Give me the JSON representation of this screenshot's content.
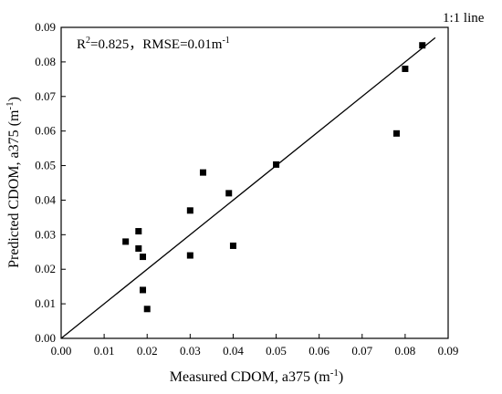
{
  "chart_data": {
    "type": "scatter",
    "xlabel_main": "Measured CDOM, a375 (m",
    "xlabel_sup": "-1",
    "xlabel_end": ")",
    "ylabel_main": "Predicted CDOM, a375 (m",
    "ylabel_sup": "-1",
    "ylabel_end": ")",
    "xlim": [
      0,
      0.09
    ],
    "ylim": [
      0,
      0.09
    ],
    "x_ticks": [
      "0.00",
      "0.01",
      "0.02",
      "0.03",
      "0.04",
      "0.05",
      "0.06",
      "0.07",
      "0.08",
      "0.09"
    ],
    "y_ticks": [
      "0.00",
      "0.01",
      "0.02",
      "0.03",
      "0.04",
      "0.05",
      "0.06",
      "0.07",
      "0.08",
      "0.09"
    ],
    "annotation": {
      "r_prefix": "R",
      "r_sup": "2",
      "r_value": "=0.825，RMSE=0.01m",
      "rmse_sup": "-1"
    },
    "line_label": "1:1 line",
    "reference_line": {
      "x": [
        0,
        0.087
      ],
      "y": [
        0,
        0.087
      ]
    },
    "points": [
      {
        "x": 0.015,
        "y": 0.028
      },
      {
        "x": 0.018,
        "y": 0.031
      },
      {
        "x": 0.018,
        "y": 0.026
      },
      {
        "x": 0.019,
        "y": 0.0236
      },
      {
        "x": 0.019,
        "y": 0.014
      },
      {
        "x": 0.02,
        "y": 0.0085
      },
      {
        "x": 0.03,
        "y": 0.037
      },
      {
        "x": 0.03,
        "y": 0.024
      },
      {
        "x": 0.033,
        "y": 0.048
      },
      {
        "x": 0.039,
        "y": 0.042
      },
      {
        "x": 0.04,
        "y": 0.0268
      },
      {
        "x": 0.05,
        "y": 0.0503
      },
      {
        "x": 0.078,
        "y": 0.0593
      },
      {
        "x": 0.08,
        "y": 0.078
      },
      {
        "x": 0.084,
        "y": 0.0848
      }
    ],
    "grid": false,
    "legend": "none"
  }
}
